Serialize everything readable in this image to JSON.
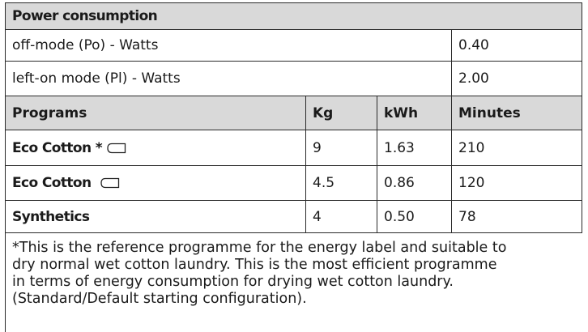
{
  "table": {
    "title": "Power consumption",
    "power_rows": [
      [
        "off-mode  (Po) - Watts",
        "0.40"
      ],
      [
        "left-on mode (Pl) - Watts",
        "2.00"
      ]
    ],
    "headers": [
      "Programs",
      "Kg",
      "kWh",
      "Minutes"
    ],
    "rows": [
      [
        "Eco Cotton *",
        "9",
        "1.63",
        "210"
      ],
      [
        "Eco Cotton",
        "4.5",
        "0.86",
        "120"
      ],
      [
        "Synthetics",
        "4",
        "0.50",
        "78"
      ]
    ],
    "footnote": [
      "*This is the reference programme for the energy label and suitable to",
      "dry normal wet cotton laundry. This is the most efficient programme",
      "in terms of energy consumption for drying wet cotton laundry.",
      "(Standard/Default starting configuration)."
    ]
  }
}
